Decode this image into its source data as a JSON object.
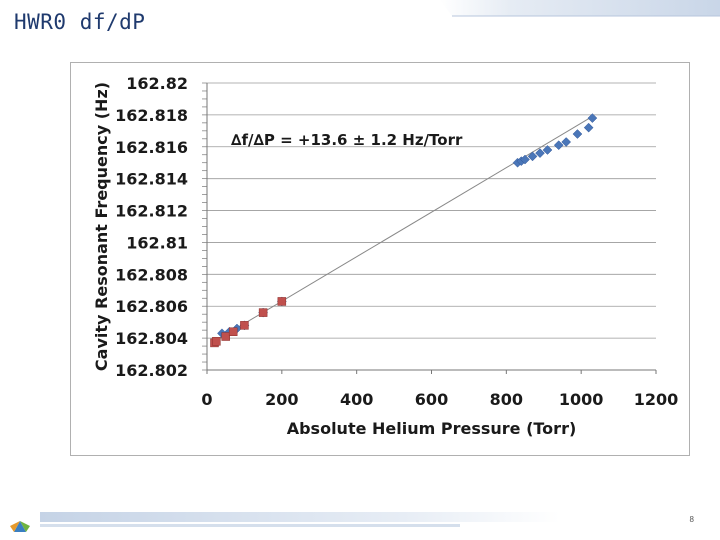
{
  "slide": {
    "title": "HWR0 df/dP",
    "page_number": "8"
  },
  "chart_data": {
    "type": "scatter",
    "title": "",
    "xlabel": "Absolute Helium Pressure (Torr)",
    "ylabel": "Cavity Resonant Frequency (Hz)",
    "xlim": [
      0,
      1200
    ],
    "ylim": [
      162.802,
      162.82
    ],
    "x_ticks": [
      "0",
      "200",
      "400",
      "600",
      "800",
      "1000",
      "1200"
    ],
    "y_ticks": [
      "162.82",
      "162.818",
      "162.816",
      "162.814",
      "162.812",
      "162.81",
      "162.808",
      "162.806",
      "162.804",
      "162.802"
    ],
    "grid": "horizontal",
    "annotation": "∆f/∆P = +13.6 ± 1.2 Hz/Torr",
    "trendline": {
      "x": [
        20,
        1030
      ],
      "y": [
        162.8038,
        162.8179
      ]
    },
    "series": [
      {
        "color": "#4a76b8",
        "marker": "diamond",
        "x": [
          40,
          60,
          80,
          100,
          150,
          200,
          830,
          840,
          850,
          870,
          890,
          910,
          940,
          960,
          990,
          1020,
          1030
        ],
        "y": [
          162.8043,
          162.8044,
          162.8046,
          162.8048,
          162.8056,
          162.8063,
          162.815,
          162.8151,
          162.8152,
          162.8154,
          162.8156,
          162.8158,
          162.8161,
          162.8163,
          162.8168,
          162.8172,
          162.8178
        ]
      },
      {
        "color": "#c0504d",
        "marker": "square",
        "x": [
          20,
          25,
          50,
          70,
          100,
          150,
          200
        ],
        "y": [
          162.8037,
          162.8038,
          162.8041,
          162.8044,
          162.8048,
          162.8056,
          162.8063
        ]
      }
    ]
  },
  "colors": {
    "title": "#1f3a6e",
    "axis_text": "#1a1a1a",
    "grid": "#9a9a9a",
    "trendline": "#888888"
  }
}
